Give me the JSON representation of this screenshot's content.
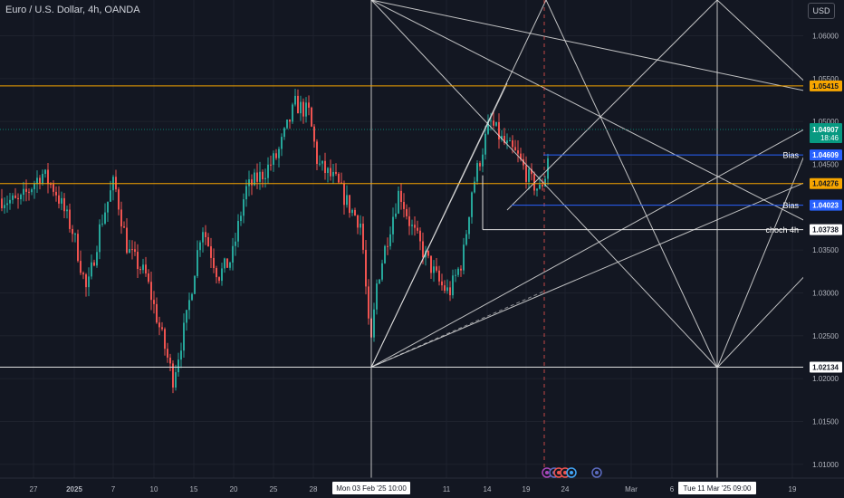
{
  "header": {
    "title": "Euro / U.S. Dollar, 4h, OANDA",
    "currency_button": "USD"
  },
  "colors": {
    "background": "#131722",
    "up": "#26a69a",
    "down": "#ef5350",
    "orange": "#f7a600",
    "blue": "#2962ff",
    "white": "#e0e0e0",
    "current": "#089981"
  },
  "chart_data": {
    "type": "candlestick",
    "symbol": "EUR/USD",
    "ylim": [
      1.0075,
      1.0665
    ],
    "y_ticks": [
      "1.06000",
      "1.05500",
      "1.05000",
      "1.04500",
      "1.03500",
      "1.03000",
      "1.02500",
      "1.02000",
      "1.01500",
      "1.01000"
    ],
    "x_ticks": [
      "27",
      "2025",
      "7",
      "10",
      "15",
      "20",
      "25",
      "28",
      "11",
      "14",
      "19",
      "24",
      "Mar",
      "6",
      "19"
    ],
    "cursor_x_label": "Mon 03 Feb '25   10:00",
    "cursor2_x_label": "Tue 11 Mar '25   09:00",
    "horizontal_levels": [
      {
        "name": "upper-orange",
        "price": 1.05415,
        "label": "1.05415",
        "style": "orange"
      },
      {
        "name": "mid-orange",
        "price": 1.04276,
        "label": "1.04276",
        "style": "orange"
      },
      {
        "name": "bias-upper",
        "price": 1.04609,
        "label": "1.04609",
        "tag": "Bias",
        "style": "blue"
      },
      {
        "name": "bias-lower",
        "price": 1.04023,
        "label": "1.04023",
        "tag": "Bias",
        "style": "blue"
      },
      {
        "name": "choch",
        "price": 1.03738,
        "label": "1.03738",
        "tag": "choch 4h",
        "style": "white"
      },
      {
        "name": "low-level",
        "price": 1.02134,
        "label": "1.02134",
        "style": "white"
      }
    ],
    "current_price": {
      "price": 1.04907,
      "label": "1.04907",
      "countdown": "18:46"
    },
    "swing_low": {
      "x": 410,
      "price": 1.02134
    },
    "anchor_low2": {
      "x": 792,
      "price": 1.02134
    }
  }
}
